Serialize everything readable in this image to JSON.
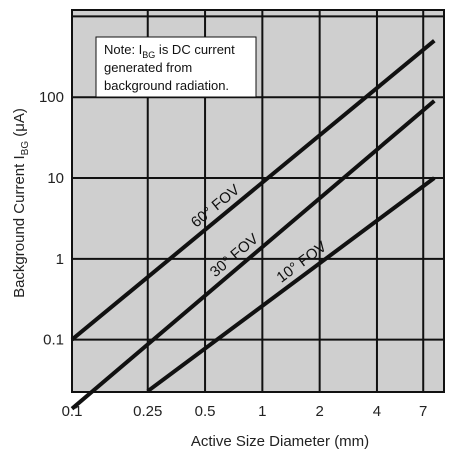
{
  "chart_data": {
    "type": "line",
    "xscale": "log",
    "yscale": "log",
    "xlim": [
      0.1,
      9
    ],
    "ylim": [
      0.0225,
      1200
    ],
    "grid": true,
    "plot_background": "#cfcfcf",
    "line_color": "#111111",
    "xlabel": "Active Size Diameter (mm)",
    "ylabel": {
      "before": "Background Current I",
      "subscript": "BG",
      "after": " (μA)"
    },
    "x_ticks": [
      0.1,
      0.25,
      0.5,
      1,
      2,
      4,
      7
    ],
    "x_tick_labels": [
      "0.1",
      "0.25",
      "0.5",
      "1",
      "2",
      "4",
      "7"
    ],
    "y_ticks": [
      0.1,
      1,
      10,
      100
    ],
    "y_tick_labels": [
      "0.1",
      "1",
      "10",
      "100"
    ],
    "x_gridlines": [
      0.1,
      0.25,
      0.5,
      1,
      2,
      4,
      7,
      9
    ],
    "y_gridlines": [
      0.1,
      1,
      10,
      100,
      1000
    ],
    "series": [
      {
        "name": "60° FOV",
        "x": [
          0.1,
          8.0
        ],
        "y": [
          0.1,
          500
        ]
      },
      {
        "name": "30° FOV",
        "x": [
          0.1,
          8.0
        ],
        "y": [
          0.014,
          90
        ]
      },
      {
        "name": "10° FOV",
        "x": [
          0.25,
          8.0
        ],
        "y": [
          0.023,
          10
        ]
      }
    ],
    "note": {
      "line1_before": "Note: I",
      "line1_sub": "BG",
      "line1_after": " is DC current",
      "line2": "generated from",
      "line3": "background radiation."
    }
  }
}
